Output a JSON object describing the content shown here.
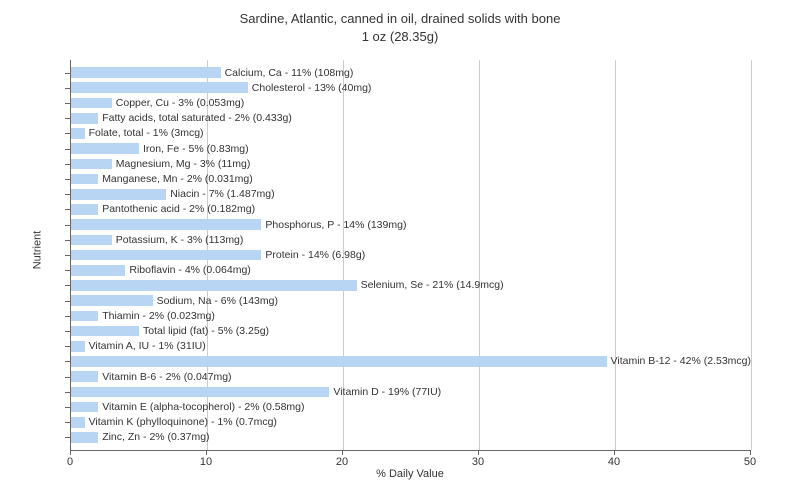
{
  "chart": {
    "type": "bar-horizontal",
    "title_line1": "Sardine, Atlantic, canned in oil, drained solids with bone",
    "title_line2": "1 oz (28.35g)",
    "title_fontsize": 13,
    "xlabel": "% Daily Value",
    "ylabel": "Nutrient",
    "label_fontsize": 11,
    "xlim": [
      0,
      50
    ],
    "xtick_step": 10,
    "xticks": [
      0,
      10,
      20,
      30,
      40,
      50
    ],
    "bar_color": "#b9d5f4",
    "grid_color": "#cccccc",
    "axis_color": "#666666",
    "background_color": "#ffffff",
    "text_color": "#333333",
    "barlabel_fontsize": 10.5,
    "nutrients": [
      {
        "label": "Calcium, Ca - 11% (108mg)",
        "pct": 11
      },
      {
        "label": "Cholesterol - 13% (40mg)",
        "pct": 13
      },
      {
        "label": "Copper, Cu - 3% (0.053mg)",
        "pct": 3
      },
      {
        "label": "Fatty acids, total saturated - 2% (0.433g)",
        "pct": 2
      },
      {
        "label": "Folate, total - 1% (3mcg)",
        "pct": 1
      },
      {
        "label": "Iron, Fe - 5% (0.83mg)",
        "pct": 5
      },
      {
        "label": "Magnesium, Mg - 3% (11mg)",
        "pct": 3
      },
      {
        "label": "Manganese, Mn - 2% (0.031mg)",
        "pct": 2
      },
      {
        "label": "Niacin - 7% (1.487mg)",
        "pct": 7
      },
      {
        "label": "Pantothenic acid - 2% (0.182mg)",
        "pct": 2
      },
      {
        "label": "Phosphorus, P - 14% (139mg)",
        "pct": 14
      },
      {
        "label": "Potassium, K - 3% (113mg)",
        "pct": 3
      },
      {
        "label": "Protein - 14% (6.98g)",
        "pct": 14
      },
      {
        "label": "Riboflavin - 4% (0.064mg)",
        "pct": 4
      },
      {
        "label": "Selenium, Se - 21% (14.9mcg)",
        "pct": 21
      },
      {
        "label": "Sodium, Na - 6% (143mg)",
        "pct": 6
      },
      {
        "label": "Thiamin - 2% (0.023mg)",
        "pct": 2
      },
      {
        "label": "Total lipid (fat) - 5% (3.25g)",
        "pct": 5
      },
      {
        "label": "Vitamin A, IU - 1% (31IU)",
        "pct": 1
      },
      {
        "label": "Vitamin B-12 - 42% (2.53mcg)",
        "pct": 42
      },
      {
        "label": "Vitamin B-6 - 2% (0.047mg)",
        "pct": 2
      },
      {
        "label": "Vitamin D - 19% (77IU)",
        "pct": 19
      },
      {
        "label": "Vitamin E (alpha-tocopherol) - 2% (0.58mg)",
        "pct": 2
      },
      {
        "label": "Vitamin K (phylloquinone) - 1% (0.7mcg)",
        "pct": 1
      },
      {
        "label": "Zinc, Zn - 2% (0.37mg)",
        "pct": 2
      }
    ]
  }
}
